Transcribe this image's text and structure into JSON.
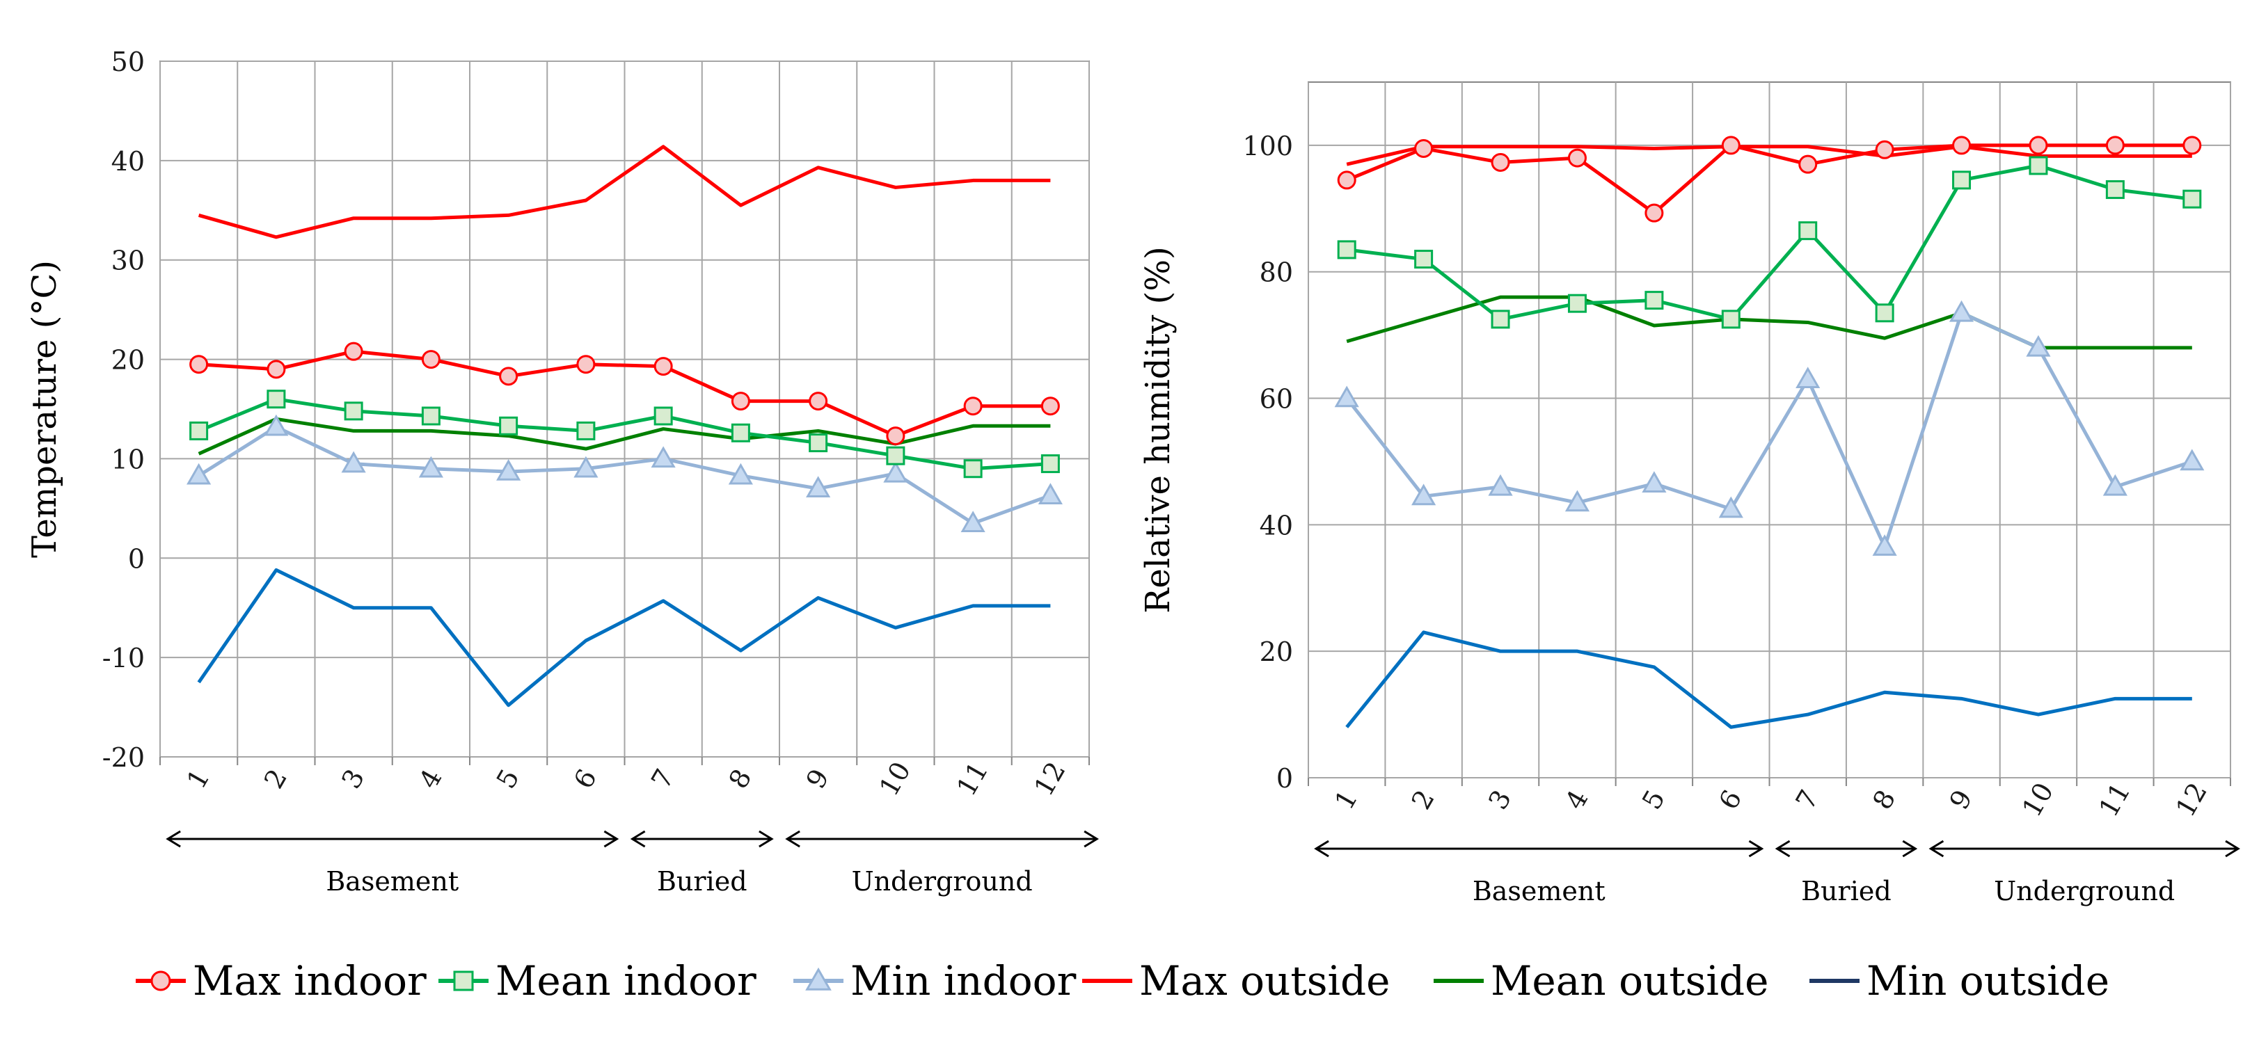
{
  "chart_data": [
    {
      "type": "line",
      "title": "",
      "xlabel": "",
      "ylabel": "Temperature (°C)",
      "ylim": [
        -20,
        50
      ],
      "yticks": [
        -20,
        -10,
        0,
        10,
        20,
        30,
        40,
        50
      ],
      "categories": [
        "1",
        "2",
        "3",
        "4",
        "5",
        "6",
        "7",
        "8",
        "9",
        "10",
        "11",
        "12"
      ],
      "grid": true,
      "groups": [
        {
          "label": "Basement",
          "from": 1,
          "to": 6
        },
        {
          "label": "Buried",
          "from": 7,
          "to": 8
        },
        {
          "label": "Underground",
          "from": 9,
          "to": 12
        }
      ],
      "series": [
        {
          "name": "Max indoor",
          "values": [
            19.5,
            19.0,
            20.8,
            20.0,
            18.3,
            19.5,
            19.3,
            15.8,
            15.8,
            12.3,
            15.3,
            15.3
          ]
        },
        {
          "name": "Mean indoor",
          "values": [
            12.8,
            16.0,
            14.8,
            14.3,
            13.3,
            12.8,
            14.3,
            12.6,
            11.6,
            10.3,
            9.0,
            9.5
          ]
        },
        {
          "name": "Min indoor",
          "values": [
            8.3,
            13.2,
            9.5,
            9.0,
            8.7,
            9.0,
            10.0,
            8.3,
            7.0,
            8.5,
            3.5,
            6.3
          ]
        },
        {
          "name": "Max outside",
          "values": [
            34.5,
            32.3,
            34.2,
            34.2,
            34.5,
            36.0,
            41.4,
            35.5,
            39.3,
            37.3,
            38.0,
            38.0
          ]
        },
        {
          "name": "Mean outside",
          "values": [
            10.5,
            14.0,
            12.8,
            12.8,
            12.3,
            11.0,
            13.0,
            12.0,
            12.8,
            11.5,
            13.3,
            13.3
          ]
        },
        {
          "name": "Min outside",
          "values": [
            -12.5,
            -1.2,
            -5.0,
            -5.0,
            -14.8,
            -8.3,
            -4.3,
            -9.3,
            -4.0,
            -7.0,
            -4.8,
            -4.8
          ]
        }
      ]
    },
    {
      "type": "line",
      "title": "",
      "xlabel": "",
      "ylabel": "Relative humidity (%)",
      "ylim": [
        0,
        110
      ],
      "yticks": [
        0,
        20,
        40,
        60,
        80,
        100
      ],
      "categories": [
        "1",
        "2",
        "3",
        "4",
        "5",
        "6",
        "7",
        "8",
        "9",
        "10",
        "11",
        "12"
      ],
      "grid": true,
      "groups": [
        {
          "label": "Basement",
          "from": 1,
          "to": 6
        },
        {
          "label": "Buried",
          "from": 7,
          "to": 8
        },
        {
          "label": "Underground",
          "from": 9,
          "to": 12
        }
      ],
      "series": [
        {
          "name": "Max indoor",
          "values": [
            94.5,
            99.5,
            97.3,
            98.0,
            89.3,
            100.0,
            97.0,
            99.3,
            100.0,
            100.0,
            100.0,
            100.0
          ]
        },
        {
          "name": "Mean indoor",
          "values": [
            83.5,
            82.0,
            72.5,
            75.0,
            75.5,
            72.5,
            86.5,
            73.5,
            94.5,
            96.8,
            93.0,
            91.5
          ]
        },
        {
          "name": "Min indoor",
          "values": [
            60.0,
            44.5,
            46.0,
            43.5,
            46.5,
            42.5,
            63.0,
            36.5,
            73.5,
            68.0,
            46.0,
            50.0
          ]
        },
        {
          "name": "Max outside",
          "values": [
            97.0,
            99.8,
            99.8,
            99.8,
            99.5,
            99.8,
            99.8,
            98.3,
            99.8,
            98.3,
            98.3,
            98.3
          ]
        },
        {
          "name": "Mean outside",
          "values": [
            69.0,
            72.5,
            76.0,
            76.0,
            71.5,
            72.5,
            72.0,
            69.5,
            73.5,
            68.0,
            68.0,
            68.0
          ]
        },
        {
          "name": "Min outside",
          "values": [
            8.0,
            23.0,
            20.0,
            20.0,
            17.5,
            8.0,
            10.0,
            13.5,
            12.5,
            10.0,
            12.5,
            12.5
          ]
        }
      ]
    }
  ],
  "legend": [
    {
      "label": "Max indoor",
      "color": "#ff0000",
      "marker": "circle",
      "marker_fill": "#f8c8c8"
    },
    {
      "label": "Mean indoor",
      "color": "#00b050",
      "marker": "square",
      "marker_fill": "#d8ecd0"
    },
    {
      "label": "Min indoor",
      "color": "#95b3d7",
      "marker": "triangle",
      "marker_fill": "#c5d9f1"
    },
    {
      "label": "Max outside",
      "color": "#ff0000",
      "marker": "none"
    },
    {
      "label": "Mean outside",
      "color": "#008000",
      "marker": "none"
    },
    {
      "label": "Min outside",
      "color": "#0070c0",
      "legend_color": "#1f3864",
      "marker": "none"
    }
  ]
}
